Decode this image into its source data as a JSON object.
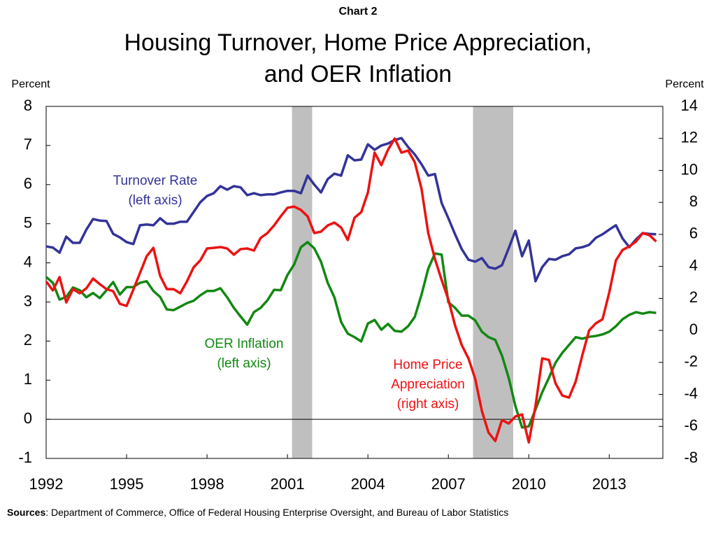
{
  "chart_data": {
    "type": "line",
    "chart_label": "Chart 2",
    "title": [
      "Housing Turnover, Home Price Appreciation,",
      "and OER Inflation"
    ],
    "y_label": "Percent",
    "y2_label": "Percent",
    "source_label": "Sources",
    "source_text": ": Department of Commerce, Office of Federal Housing Enterprise Oversight, and Bureau of Labor Statistics",
    "xlim": [
      1992,
      2015
    ],
    "xticks": [
      1992,
      1995,
      1998,
      2001,
      2004,
      2007,
      2010,
      2013
    ],
    "ylim": [
      -1,
      8
    ],
    "yticks": [
      -1,
      0,
      1,
      2,
      3,
      4,
      5,
      6,
      7,
      8
    ],
    "y2lim": [
      -8,
      14
    ],
    "y2ticks": [
      -8,
      -6,
      -4,
      -2,
      0,
      2,
      4,
      6,
      8,
      10,
      12,
      14
    ],
    "recessions": [
      [
        2001.17,
        2001.92
      ],
      [
        2007.92,
        2009.42
      ]
    ],
    "recession_color": "#bfbfbf",
    "x": [
      1992,
      1992.25,
      1992.5,
      1992.75,
      1993,
      1993.25,
      1993.5,
      1993.75,
      1994,
      1994.25,
      1994.5,
      1994.75,
      1995,
      1995.25,
      1995.5,
      1995.75,
      1996,
      1996.25,
      1996.5,
      1996.75,
      1997,
      1997.25,
      1997.5,
      1997.75,
      1998,
      1998.25,
      1998.5,
      1998.75,
      1999,
      1999.25,
      1999.5,
      1999.75,
      2000,
      2000.25,
      2000.5,
      2000.75,
      2001,
      2001.25,
      2001.5,
      2001.75,
      2002,
      2002.25,
      2002.5,
      2002.75,
      2003,
      2003.25,
      2003.5,
      2003.75,
      2004,
      2004.25,
      2004.5,
      2004.75,
      2005,
      2005.25,
      2005.5,
      2005.75,
      2006,
      2006.25,
      2006.5,
      2006.75,
      2007,
      2007.25,
      2007.5,
      2007.75,
      2008,
      2008.25,
      2008.5,
      2008.75,
      2009,
      2009.25,
      2009.5,
      2009.75,
      2010,
      2010.25,
      2010.5,
      2010.75,
      2011,
      2011.25,
      2011.5,
      2011.75,
      2012,
      2012.25,
      2012.5,
      2012.75,
      2013,
      2013.25,
      2013.5,
      2013.75,
      2014,
      2014.25,
      2014.5,
      2014.75
    ],
    "series": [
      {
        "name": "Turnover Rate",
        "color": "#333399",
        "axis": "y",
        "values": [
          4.42,
          4.39,
          4.26,
          4.67,
          4.51,
          4.51,
          4.85,
          5.12,
          5.08,
          5.07,
          4.74,
          4.65,
          4.53,
          4.48,
          4.96,
          4.98,
          4.96,
          5.14,
          5.0,
          5.0,
          5.05,
          5.05,
          5.3,
          5.55,
          5.71,
          5.78,
          5.96,
          5.87,
          5.96,
          5.93,
          5.73,
          5.78,
          5.73,
          5.75,
          5.75,
          5.8,
          5.84,
          5.84,
          5.78,
          6.23,
          6.0,
          5.8,
          6.14,
          6.28,
          6.23,
          6.75,
          6.62,
          6.64,
          7.03,
          6.89,
          7.0,
          7.05,
          7.14,
          7.19,
          6.96,
          6.77,
          6.52,
          6.23,
          6.27,
          5.53,
          5.14,
          4.73,
          4.35,
          4.08,
          4.03,
          4.12,
          3.89,
          3.85,
          3.94,
          4.37,
          4.82,
          4.17,
          4.57,
          3.53,
          3.89,
          4.1,
          4.08,
          4.17,
          4.22,
          4.37,
          4.4,
          4.46,
          4.64,
          4.73,
          4.85,
          4.96,
          4.62,
          4.4,
          4.6,
          4.76,
          4.74,
          4.73
        ]
      },
      {
        "name": "OER Inflation",
        "color": "#118811",
        "axis": "y",
        "values": [
          3.64,
          3.49,
          3.06,
          3.13,
          3.37,
          3.3,
          3.12,
          3.23,
          3.1,
          3.3,
          3.51,
          3.19,
          3.38,
          3.38,
          3.49,
          3.53,
          3.28,
          3.13,
          2.81,
          2.79,
          2.88,
          2.97,
          3.03,
          3.17,
          3.28,
          3.28,
          3.35,
          3.12,
          2.85,
          2.63,
          2.42,
          2.74,
          2.85,
          3.04,
          3.31,
          3.3,
          3.69,
          3.96,
          4.4,
          4.53,
          4.37,
          4.03,
          3.49,
          3.12,
          2.49,
          2.19,
          2.1,
          1.99,
          2.45,
          2.54,
          2.29,
          2.44,
          2.26,
          2.24,
          2.38,
          2.62,
          3.19,
          3.85,
          4.24,
          4.21,
          2.99,
          2.85,
          2.65,
          2.65,
          2.53,
          2.24,
          2.1,
          2.03,
          1.63,
          1.06,
          0.34,
          -0.21,
          -0.18,
          0.25,
          0.69,
          1.06,
          1.45,
          1.7,
          1.9,
          2.1,
          2.06,
          2.11,
          2.13,
          2.17,
          2.24,
          2.38,
          2.56,
          2.67,
          2.74,
          2.7,
          2.74,
          2.72
        ]
      },
      {
        "name": "Home Price Appreciation",
        "color": "#ee1111",
        "axis": "y2",
        "values": [
          3.06,
          2.5,
          3.33,
          1.75,
          2.58,
          2.32,
          2.63,
          3.24,
          2.89,
          2.58,
          2.45,
          1.66,
          1.53,
          2.54,
          3.59,
          4.64,
          5.16,
          3.41,
          2.58,
          2.58,
          2.32,
          3.06,
          3.94,
          4.38,
          5.12,
          5.16,
          5.21,
          5.12,
          4.73,
          5.08,
          5.12,
          4.99,
          5.78,
          6.08,
          6.56,
          7.13,
          7.66,
          7.74,
          7.53,
          7.13,
          6.08,
          6.17,
          6.56,
          6.74,
          6.43,
          5.65,
          7.04,
          7.39,
          8.62,
          11.11,
          10.33,
          11.29,
          11.99,
          11.11,
          11.24,
          10.5,
          8.84,
          6.08,
          4.46,
          3.15,
          1.93,
          0.31,
          -0.92,
          -1.75,
          -3.02,
          -5.03,
          -6.39,
          -6.91,
          -5.6,
          -5.82,
          -5.38,
          -5.25,
          -7.0,
          -4.72,
          -1.75,
          -1.84,
          -3.32,
          -4.07,
          -4.2,
          -3.19,
          -1.53,
          0.0,
          0.44,
          0.7,
          2.36,
          4.38,
          5.03,
          5.25,
          5.56,
          6.08,
          5.95,
          5.56
        ]
      }
    ],
    "annotations": [
      {
        "series": 0,
        "lines": [
          "Turnover Rate",
          "(left axis)"
        ]
      },
      {
        "series": 1,
        "lines": [
          "OER Inflation",
          "(left axis)"
        ]
      },
      {
        "series": 2,
        "lines": [
          "Home Price",
          "Appreciation",
          "(right axis)"
        ]
      }
    ]
  }
}
